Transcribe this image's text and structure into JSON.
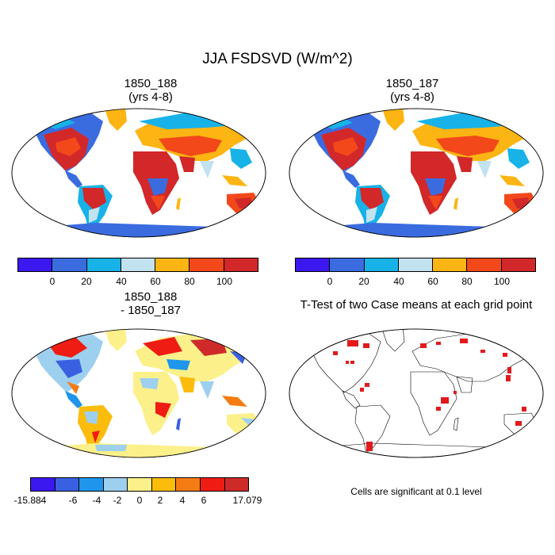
{
  "title": "JJA FSDSVD (W/m^2)",
  "panels": {
    "p1": {
      "title_line1": "1850_188",
      "title_line2": "(yrs 4-8)"
    },
    "p2": {
      "title_line1": "1850_187",
      "title_line2": "(yrs 4-8)"
    },
    "p3": {
      "title_line1": "1850_188",
      "title_line2": "- 1850_187"
    },
    "p4": {
      "title_line1": "T-Test of two Case means at each grid point"
    }
  },
  "colorbar_top": {
    "colors": [
      "#3c18f0",
      "#3a6ce0",
      "#17b2e8",
      "#c2e2f0",
      "#fcb512",
      "#f3481a",
      "#d2282a"
    ],
    "labels": [
      "0",
      "20",
      "40",
      "60",
      "80",
      "100"
    ]
  },
  "colorbar_bottom": {
    "colors": [
      "#3c18f0",
      "#3a60e2",
      "#1f96ec",
      "#9dd0ee",
      "#fcf08a",
      "#fcbc0c",
      "#f57c12",
      "#ef1c14",
      "#cf2a2a"
    ],
    "labels": [
      "-15.884",
      "-6",
      "-4",
      "-2",
      "0",
      "2",
      "4",
      "6",
      "17.079"
    ]
  },
  "ttest_note": "Cells are significant at 0.1 level",
  "ttest_color": "#e31a1c"
}
